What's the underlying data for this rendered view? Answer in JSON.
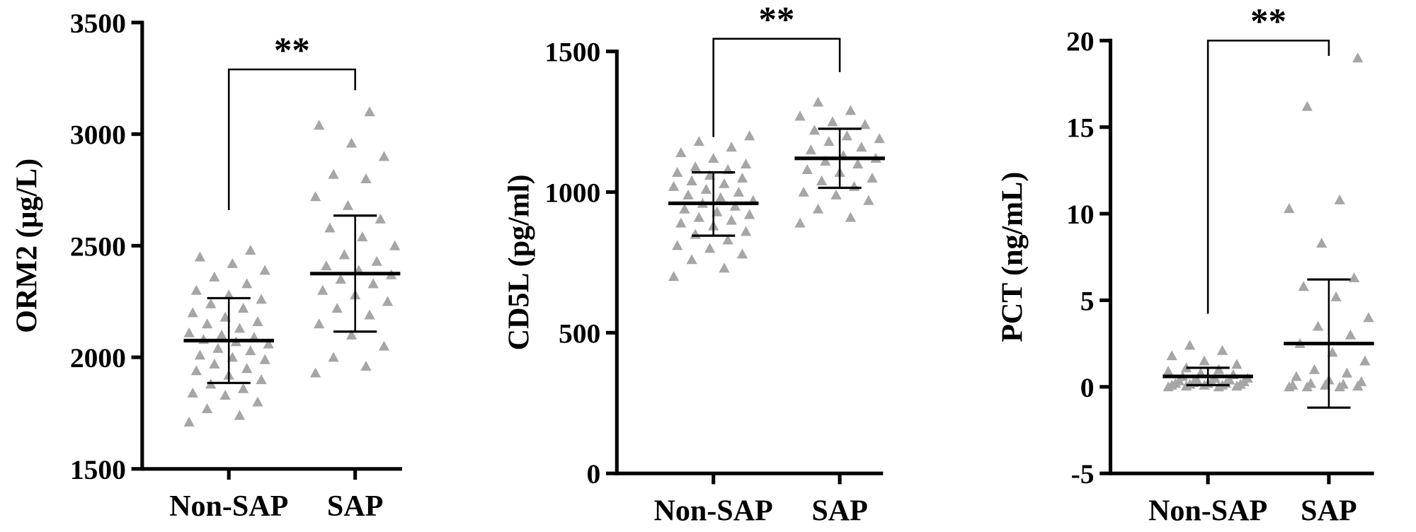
{
  "chart_data": [
    {
      "type": "scatter",
      "ylabel": "ORM2 (μg/L)",
      "annotation": "**",
      "categories": [
        "Non-SAP",
        "SAP"
      ],
      "color": "#a6a6a6",
      "ylim": [
        1500,
        3500
      ],
      "yticks": [
        1500,
        2000,
        2500,
        3000,
        3500
      ],
      "groups": [
        {
          "mean": 2075,
          "sd_low": 1885,
          "sd_high": 2265,
          "values": [
            1710,
            1740,
            1770,
            1800,
            1830,
            1840,
            1860,
            1880,
            1900,
            1920,
            1940,
            1950,
            1970,
            1990,
            2000,
            2010,
            2030,
            2040,
            2060,
            2070,
            2080,
            2090,
            2100,
            2110,
            2130,
            2150,
            2160,
            2180,
            2200,
            2220,
            2240,
            2260,
            2280,
            2300,
            2330,
            2360,
            2390,
            2420,
            2450,
            2480
          ]
        },
        {
          "mean": 2375,
          "sd_low": 2115,
          "sd_high": 2635,
          "values": [
            1930,
            1960,
            2000,
            2050,
            2100,
            2150,
            2190,
            2220,
            2250,
            2280,
            2300,
            2330,
            2350,
            2370,
            2390,
            2410,
            2430,
            2460,
            2500,
            2540,
            2580,
            2620,
            2680,
            2720,
            2800,
            2820,
            2900,
            2960,
            3040,
            3100
          ]
        }
      ]
    },
    {
      "type": "scatter",
      "ylabel": "CD5L (pg/ml)",
      "annotation": "**",
      "categories": [
        "Non-SAP",
        "SAP"
      ],
      "color": "#a6a6a6",
      "ylim": [
        0,
        1500
      ],
      "yticks": [
        0,
        500,
        1000,
        1500
      ],
      "groups": [
        {
          "mean": 960,
          "sd_low": 845,
          "sd_high": 1070,
          "values": [
            700,
            730,
            760,
            780,
            800,
            810,
            830,
            850,
            860,
            880,
            890,
            900,
            910,
            920,
            930,
            940,
            950,
            960,
            970,
            980,
            990,
            1000,
            1010,
            1020,
            1030,
            1040,
            1050,
            1060,
            1070,
            1080,
            1090,
            1100,
            1120,
            1140,
            1160,
            1180,
            1200
          ]
        },
        {
          "mean": 1120,
          "sd_low": 1015,
          "sd_high": 1225,
          "values": [
            890,
            910,
            940,
            970,
            990,
            1000,
            1020,
            1040,
            1050,
            1070,
            1080,
            1100,
            1110,
            1120,
            1130,
            1150,
            1160,
            1180,
            1190,
            1200,
            1220,
            1240,
            1250,
            1270,
            1290,
            1320
          ]
        }
      ]
    },
    {
      "type": "scatter",
      "ylabel": "PCT (ng/mL)",
      "annotation": "**",
      "categories": [
        "Non-SAP",
        "SAP"
      ],
      "color": "#a6a6a6",
      "ylim": [
        -5,
        20
      ],
      "yticks": [
        -5,
        0,
        5,
        10,
        15,
        20
      ],
      "groups": [
        {
          "mean": 0.6,
          "sd_low": 0.1,
          "sd_high": 1.1,
          "values": [
            0,
            0,
            0.05,
            0.05,
            0.1,
            0.1,
            0.1,
            0.15,
            0.15,
            0.2,
            0.2,
            0.2,
            0.25,
            0.3,
            0.3,
            0.35,
            0.4,
            0.4,
            0.5,
            0.5,
            0.6,
            0.7,
            0.8,
            0.9,
            1.0,
            1.1,
            1.3,
            1.5,
            1.8,
            2.1,
            2.4
          ]
        },
        {
          "mean": 2.5,
          "sd_low": -1.2,
          "sd_high": 6.2,
          "values": [
            0,
            0,
            0,
            0.05,
            0.1,
            0.1,
            0.15,
            0.2,
            0.3,
            0.4,
            0.6,
            0.8,
            1.0,
            1.5,
            2.0,
            2.5,
            3.0,
            3.5,
            4.0,
            5.2,
            5.8,
            6.3,
            8.3,
            10.3,
            10.8,
            16.2,
            19
          ]
        }
      ]
    }
  ]
}
